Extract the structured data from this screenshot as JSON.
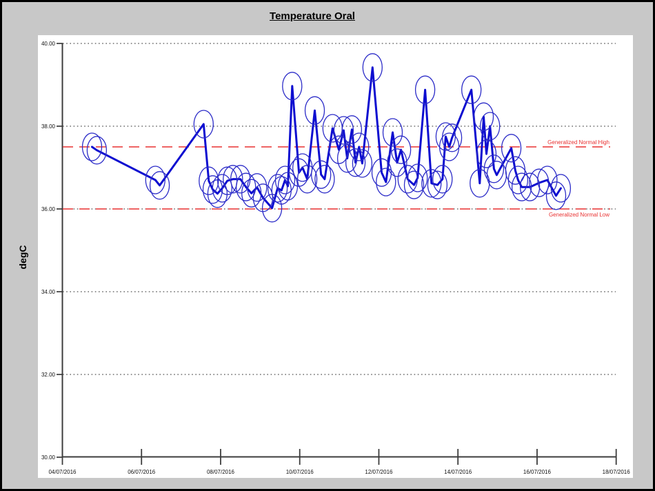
{
  "header": {
    "title": "Temperature Oral"
  },
  "chart_data": {
    "type": "line",
    "title": "Temperature Oral",
    "ylabel": "degC",
    "ylim": [
      30,
      40
    ],
    "xlim_days": [
      0,
      14
    ],
    "x_axis_unit": "days after 04/07/2016",
    "grid": {
      "horizontal": "dotted",
      "vertical": "none"
    },
    "legend": "none",
    "y_ticks": [
      {
        "v": 40,
        "label": "40.00"
      },
      {
        "v": 38,
        "label": "38.00"
      },
      {
        "v": 36,
        "label": "36.00"
      },
      {
        "v": 34,
        "label": "34.00"
      },
      {
        "v": 32,
        "label": "32.00"
      },
      {
        "v": 30,
        "label": "30.00"
      }
    ],
    "x_ticks": [
      {
        "day": 0,
        "label": "04/07/2016"
      },
      {
        "day": 2,
        "label": "06/07/2016"
      },
      {
        "day": 4,
        "label": "08/07/2016"
      },
      {
        "day": 6,
        "label": "10/07/2016"
      },
      {
        "day": 8,
        "label": "12/07/2016"
      },
      {
        "day": 10,
        "label": "14/07/2016"
      },
      {
        "day": 12,
        "label": "16/07/2016"
      },
      {
        "day": 14,
        "label": "18/07/2016"
      }
    ],
    "reference_lines": [
      {
        "label": "Generalized Normal High",
        "value": 37.5,
        "position": "above",
        "color": "#e93030"
      },
      {
        "label": "Generalized Normal Low",
        "value": 36.0,
        "position": "below",
        "color": "#e93030"
      }
    ],
    "series": [
      {
        "name": "Temperature Oral",
        "color": "#0d0dd0",
        "marker": "open-ellipse",
        "marker_color": "#2c2cc8",
        "points": [
          [
            0.75,
            37.5
          ],
          [
            0.87,
            37.42
          ],
          [
            2.35,
            36.7
          ],
          [
            2.46,
            36.57
          ],
          [
            3.57,
            38.05
          ],
          [
            3.7,
            36.68
          ],
          [
            3.8,
            36.47
          ],
          [
            3.92,
            36.37
          ],
          [
            4.04,
            36.5
          ],
          [
            4.17,
            36.68
          ],
          [
            4.31,
            36.72
          ],
          [
            4.5,
            36.72
          ],
          [
            4.64,
            36.53
          ],
          [
            4.78,
            36.38
          ],
          [
            4.92,
            36.52
          ],
          [
            5.07,
            36.27
          ],
          [
            5.3,
            36.02
          ],
          [
            5.44,
            36.5
          ],
          [
            5.54,
            36.45
          ],
          [
            5.63,
            36.7
          ],
          [
            5.7,
            36.55
          ],
          [
            5.81,
            38.97
          ],
          [
            5.98,
            36.88
          ],
          [
            6.07,
            37.0
          ],
          [
            6.19,
            36.72
          ],
          [
            6.38,
            38.38
          ],
          [
            6.54,
            36.83
          ],
          [
            6.63,
            36.72
          ],
          [
            6.83,
            37.95
          ],
          [
            6.99,
            37.43
          ],
          [
            7.11,
            37.9
          ],
          [
            7.2,
            37.22
          ],
          [
            7.32,
            37.92
          ],
          [
            7.41,
            37.12
          ],
          [
            7.5,
            37.5
          ],
          [
            7.58,
            37.1
          ],
          [
            7.84,
            39.42
          ],
          [
            8.07,
            36.88
          ],
          [
            8.18,
            36.65
          ],
          [
            8.35,
            37.85
          ],
          [
            8.46,
            37.12
          ],
          [
            8.56,
            37.43
          ],
          [
            8.73,
            36.72
          ],
          [
            8.89,
            36.58
          ],
          [
            8.98,
            36.75
          ],
          [
            9.17,
            38.88
          ],
          [
            9.33,
            36.62
          ],
          [
            9.48,
            36.58
          ],
          [
            9.61,
            36.72
          ],
          [
            9.69,
            37.75
          ],
          [
            9.78,
            37.5
          ],
          [
            9.85,
            37.72
          ],
          [
            10.34,
            38.88
          ],
          [
            10.55,
            36.62
          ],
          [
            10.65,
            38.23
          ],
          [
            10.72,
            37.33
          ],
          [
            10.81,
            38.0
          ],
          [
            10.91,
            36.97
          ],
          [
            10.98,
            36.82
          ],
          [
            11.35,
            37.47
          ],
          [
            11.45,
            36.93
          ],
          [
            11.52,
            36.7
          ],
          [
            11.61,
            36.53
          ],
          [
            11.82,
            36.53
          ],
          [
            12.05,
            36.63
          ],
          [
            12.26,
            36.7
          ],
          [
            12.48,
            36.32
          ],
          [
            12.6,
            36.5
          ]
        ]
      }
    ]
  },
  "colors": {
    "page_bg": "#c8c8c8",
    "panel_bg": "#ffffff",
    "frame": "#000000",
    "axis": "#3c3c3c",
    "grid": "#222222",
    "tick_text": "#111111",
    "reference": "#e93030",
    "series_line": "#0d0dd0",
    "marker": "#2c2cc8"
  }
}
